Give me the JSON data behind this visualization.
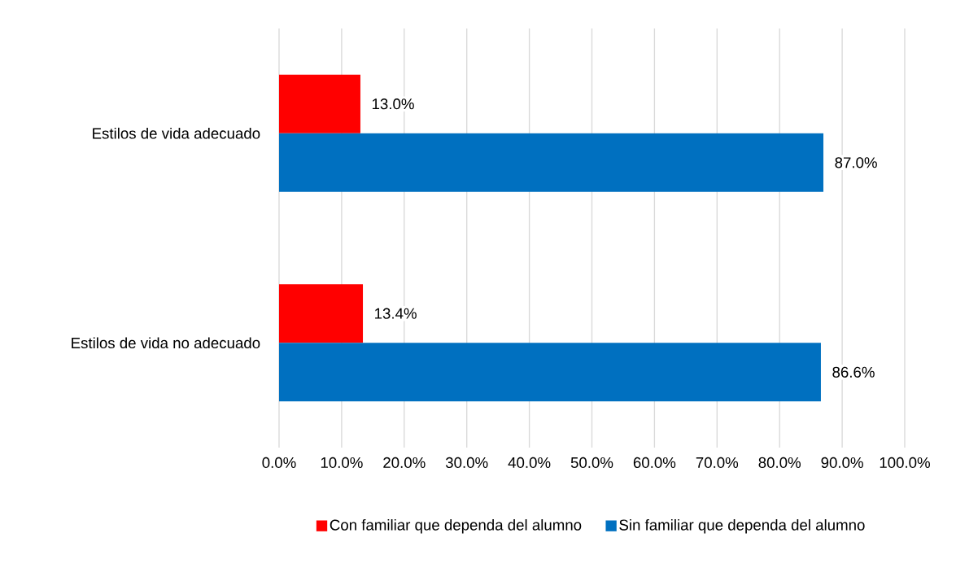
{
  "chart_data": {
    "type": "bar",
    "orientation": "horizontal",
    "categories": [
      "Estilos de vida adecuado",
      "Estilos de vida no adecuado"
    ],
    "series": [
      {
        "name": "Con familiar que dependa del alumno",
        "color": "#ff0000",
        "values": [
          13.0,
          13.4
        ],
        "value_labels": [
          "13.0%",
          "13.4%"
        ]
      },
      {
        "name": "Sin familiar que dependa del alumno",
        "color": "#0070c0",
        "values": [
          87.0,
          86.6
        ],
        "value_labels": [
          "87.0%",
          "86.6%"
        ]
      }
    ],
    "xlim": [
      0,
      100
    ],
    "xticks": [
      {
        "value": 0,
        "label": "0.0%"
      },
      {
        "value": 10,
        "label": "10.0%"
      },
      {
        "value": 20,
        "label": "20.0%"
      },
      {
        "value": 30,
        "label": "30.0%"
      },
      {
        "value": 40,
        "label": "40.0%"
      },
      {
        "value": 50,
        "label": "50.0%"
      },
      {
        "value": 60,
        "label": "60.0%"
      },
      {
        "value": 70,
        "label": "70.0%"
      },
      {
        "value": 80,
        "label": "80.0%"
      },
      {
        "value": 90,
        "label": "90.0%"
      },
      {
        "value": 100,
        "label": "100.0%"
      }
    ],
    "grid": "x",
    "legend": "bottom"
  }
}
